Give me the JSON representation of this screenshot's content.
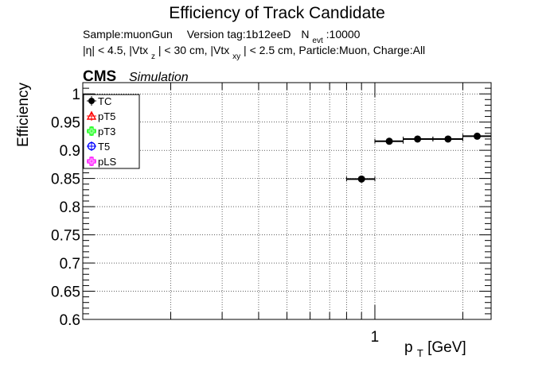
{
  "chart_data": {
    "type": "scatter",
    "title": "Efficiency of Track Candidate",
    "subtitle_line1": {
      "sample": "Sample:muonGun",
      "version": "Version tag:1b12eeD",
      "n_label": "N",
      "n_sub": "evt",
      "n_value": ":10000"
    },
    "subtitle_line2": {
      "p1": "|η| < 4.5, |Vtx",
      "s1": "z",
      "p2": "| < 30 cm, |Vtx",
      "s2": "xy",
      "p3": "| < 2.5 cm, Particle:Muon, Charge:All"
    },
    "cms_label": "CMS",
    "simulation_label": "Simulation",
    "xlabel_main": "p",
    "xlabel_sub": "T",
    "xlabel_unit": " [GeV]",
    "ylabel": "Efficiency",
    "xscale": "log",
    "xlim": [
      0.1,
      2.5
    ],
    "ylim": [
      0.6,
      1.02
    ],
    "x_tick_labels": [
      {
        "value": 1,
        "label": "1"
      }
    ],
    "y_ticks": [
      {
        "value": 0.6,
        "label": "0.6"
      },
      {
        "value": 0.65,
        "label": "0.65"
      },
      {
        "value": 0.7,
        "label": "0.7"
      },
      {
        "value": 0.75,
        "label": "0.75"
      },
      {
        "value": 0.8,
        "label": "0.8"
      },
      {
        "value": 0.85,
        "label": "0.85"
      },
      {
        "value": 0.9,
        "label": "0.9"
      },
      {
        "value": 0.95,
        "label": "0.95"
      },
      {
        "value": 1.0,
        "label": "1"
      }
    ],
    "grid": true,
    "legend_position": "top-left",
    "series": [
      {
        "name": "TC",
        "color": "#000000",
        "marker": "filled-circle",
        "points": [
          {
            "x": 0.9,
            "xlo": 0.8,
            "xhi": 1.0,
            "y": 0.849
          },
          {
            "x": 1.12,
            "xlo": 1.0,
            "xhi": 1.25,
            "y": 0.916
          },
          {
            "x": 1.4,
            "xlo": 1.25,
            "xhi": 1.58,
            "y": 0.92
          },
          {
            "x": 1.78,
            "xlo": 1.58,
            "xhi": 2.0,
            "y": 0.92
          },
          {
            "x": 2.24,
            "xlo": 2.0,
            "xhi": 2.5,
            "y": 0.925
          }
        ]
      },
      {
        "name": "pT5",
        "color": "#ff0000",
        "marker": "open-triangle",
        "points": []
      },
      {
        "name": "pT3",
        "color": "#00ff00",
        "marker": "open-cross",
        "points": []
      },
      {
        "name": "T5",
        "color": "#0000ff",
        "marker": "open-circle",
        "points": []
      },
      {
        "name": "pLS",
        "color": "#ff00ff",
        "marker": "open-cross",
        "points": []
      }
    ]
  }
}
